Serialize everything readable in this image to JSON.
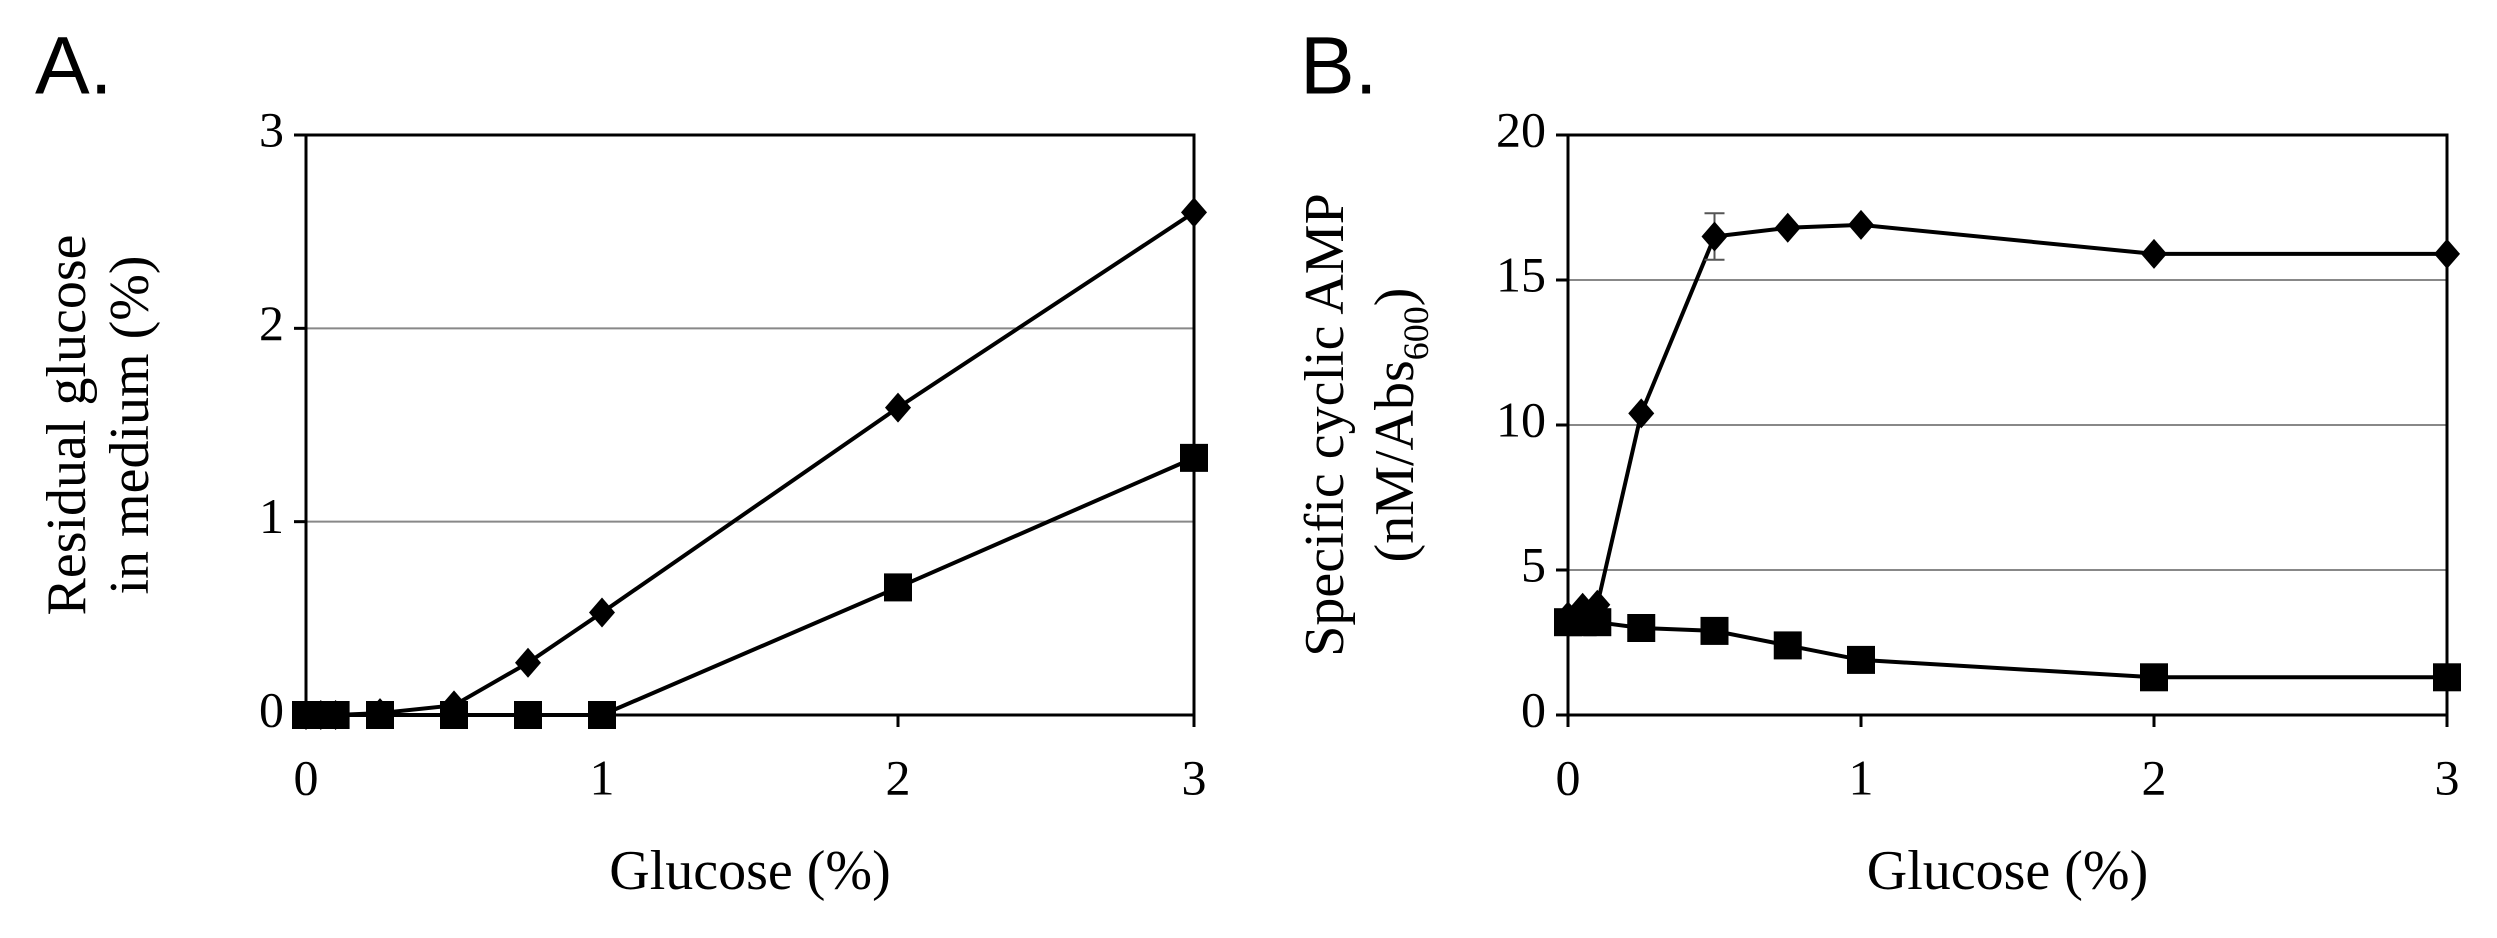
{
  "chart_data": [
    {
      "type": "line",
      "panel_label": "A.",
      "ylabel_lines": [
        [
          {
            "text": "Residual glucose"
          }
        ],
        [
          {
            "text": "in medium (%)"
          }
        ]
      ],
      "xlabel": "Glucose (%)",
      "x": [
        0,
        0.05,
        0.1,
        0.25,
        0.5,
        0.75,
        1,
        2,
        3
      ],
      "series": [
        {
          "color": "#000000",
          "marker": "diamond",
          "values": [
            0,
            0,
            0,
            0.01,
            0.05,
            0.27,
            0.53,
            1.59,
            2.6
          ]
        },
        {
          "color": "#000000",
          "marker": "square",
          "values": [
            0,
            0,
            0,
            0,
            0,
            0,
            0,
            0.66,
            1.33
          ]
        }
      ],
      "xlim": [
        0,
        3
      ],
      "xticks": [
        0,
        1,
        2,
        3
      ],
      "ylim": [
        0,
        3
      ],
      "yticks": [
        0,
        1,
        2,
        3
      ],
      "grid": true
    },
    {
      "type": "line",
      "panel_label": "B.",
      "ylabel_lines": [
        [
          {
            "text": "Specific cyclic AMP"
          }
        ],
        [
          {
            "text": "(nM/Abs"
          },
          {
            "text": "600",
            "sub": true
          },
          {
            "text": ")"
          }
        ]
      ],
      "xlabel": "Glucose (%)",
      "x": [
        0,
        0.05,
        0.1,
        0.25,
        0.5,
        0.75,
        1,
        2,
        3
      ],
      "series": [
        {
          "color": "#000000",
          "marker": "diamond",
          "values": [
            3.4,
            3.7,
            3.8,
            10.4,
            16.5,
            16.8,
            16.9,
            15.9,
            15.9
          ],
          "errors": [
            null,
            null,
            null,
            null,
            0.8,
            null,
            null,
            null,
            null
          ]
        },
        {
          "color": "#000000",
          "marker": "square",
          "values": [
            3.2,
            3.2,
            3.2,
            3.0,
            2.9,
            2.4,
            1.9,
            1.3,
            1.3
          ]
        }
      ],
      "xlim": [
        0,
        3
      ],
      "xticks": [
        0,
        1,
        2,
        3
      ],
      "ylim": [
        0,
        20
      ],
      "yticks": [
        0,
        5,
        10,
        15,
        20
      ],
      "grid": true
    }
  ]
}
